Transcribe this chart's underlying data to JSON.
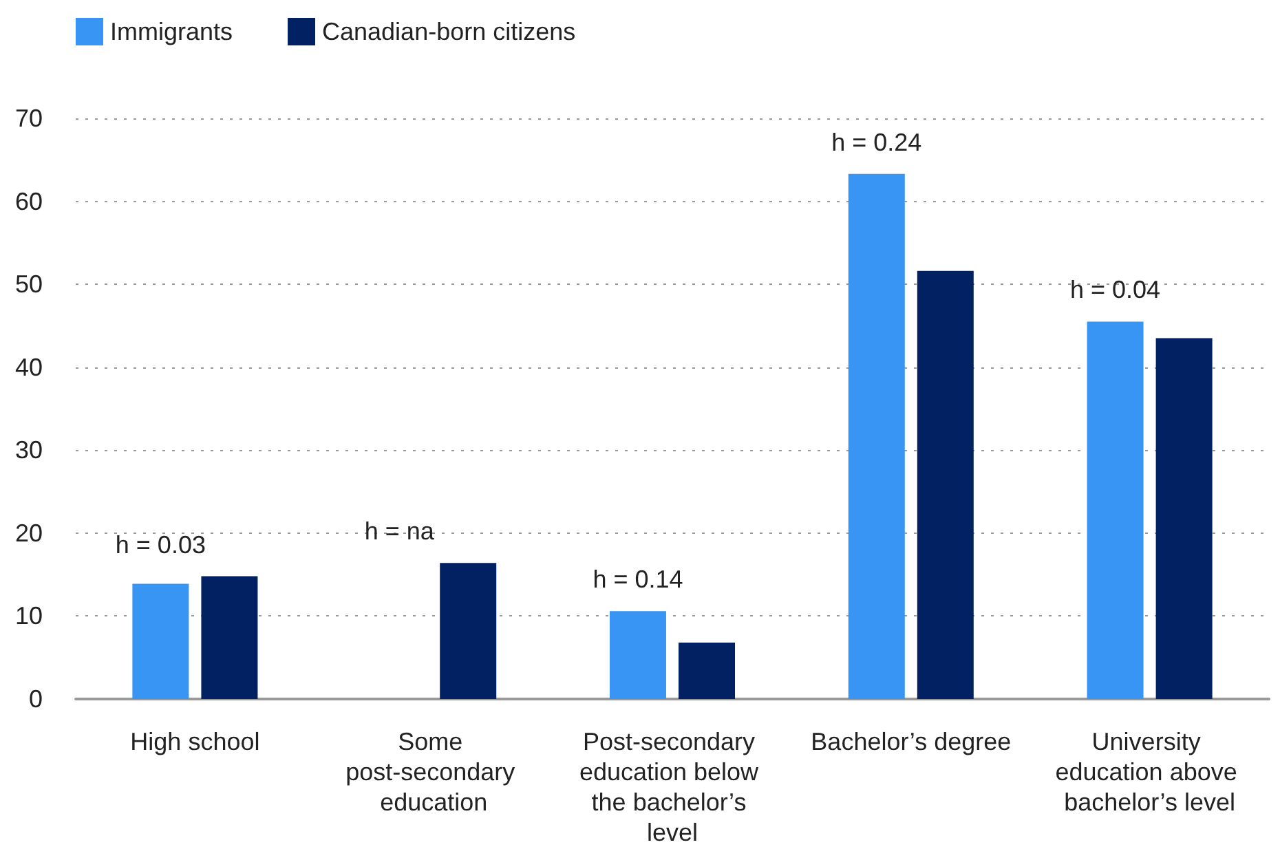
{
  "chart_data": {
    "type": "bar",
    "categories": [
      "High school",
      "Some post-secondary education",
      "Post-secondary education below the bachelor’s level",
      "Bachelor’s degree",
      "University education above bachelor’s level"
    ],
    "series": [
      {
        "name": "Immigrants",
        "color": "#3895f3",
        "values": [
          13.9,
          null,
          10.6,
          63.3,
          45.5
        ]
      },
      {
        "name": "Canadian-born citizens",
        "color": "#022163",
        "values": [
          14.8,
          16.4,
          6.8,
          51.6,
          43.5
        ]
      }
    ],
    "ylim": [
      0,
      70
    ],
    "yticks": [
      0,
      10,
      20,
      30,
      40,
      50,
      60,
      70
    ],
    "grid": "y",
    "legend": "top left",
    "annotations": [
      "h = 0.03",
      "h = na",
      "h = 0.14",
      "h = 0.24",
      "h = 0.04"
    ]
  }
}
